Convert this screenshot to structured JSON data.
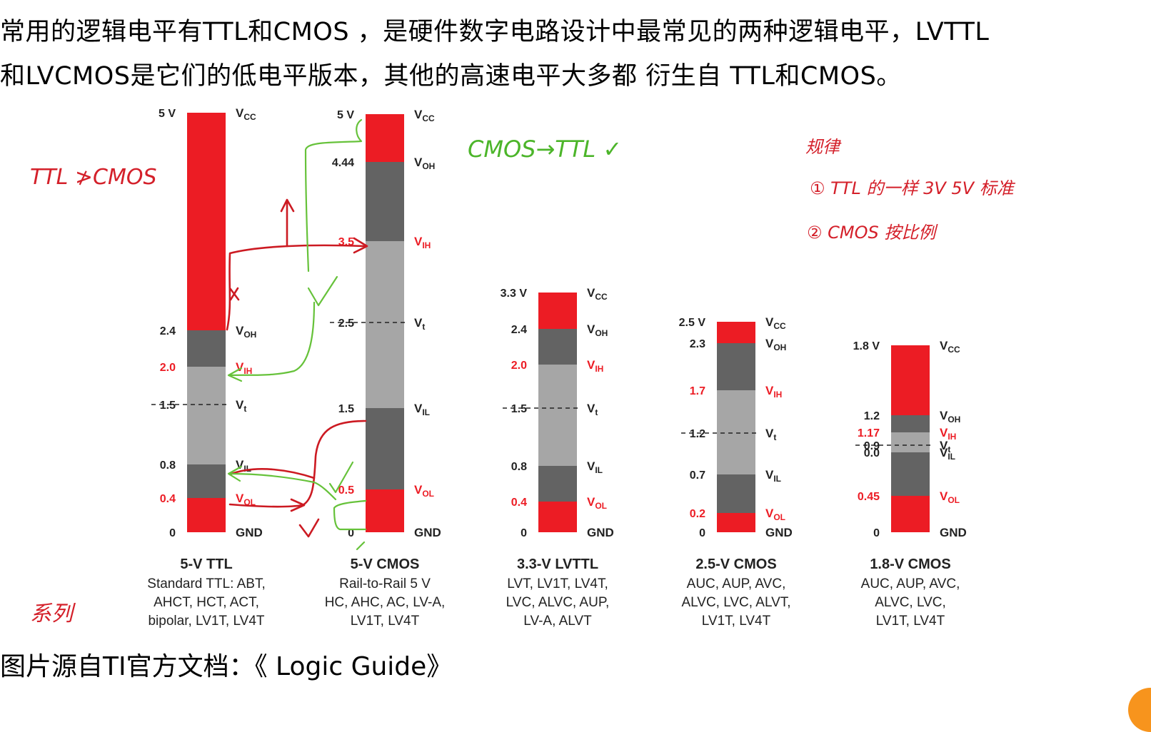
{
  "intro": {
    "line1": "常用的逻辑电平有TTL和CMOS ，是硬件数字电路设计中最常见的两种逻辑电平，LVTTL",
    "line2": "和LVCMOS是它们的低电平版本，其他的高速电平大多都 衍生自 TTL和CMOS。"
  },
  "footer": {
    "text": "图片源自TI官方文档：《 Logic Guide》"
  },
  "colors": {
    "red": "#ec1c24",
    "dark_gray": "#636363",
    "light_gray": "#a6a6a6",
    "annotation_red": "#cc1a22",
    "annotation_green": "#66c23a"
  },
  "families": [
    {
      "name": "5-V TTL",
      "desc": [
        "Standard TTL: ABT,",
        "AHCT, HCT, ACT,",
        "bipolar, LV1T, LV4T"
      ],
      "levels": [
        {
          "sym": "V",
          "sub": "CC",
          "value": "5 V",
          "red": false
        },
        {
          "sym": "V",
          "sub": "OH",
          "value": "2.4",
          "red": false
        },
        {
          "sym": "V",
          "sub": "IH",
          "value": "2.0",
          "red": true
        },
        {
          "sym": "V",
          "sub": "t",
          "value": "1.5",
          "red": false
        },
        {
          "sym": "V",
          "sub": "IL",
          "value": "0.8",
          "red": false
        },
        {
          "sym": "V",
          "sub": "OL",
          "value": "0.4",
          "red": true
        },
        {
          "sym": "GND",
          "sub": "",
          "value": "0",
          "red": false
        }
      ]
    },
    {
      "name": "5-V CMOS",
      "desc": [
        "Rail-to-Rail 5 V",
        "HC, AHC, AC, LV-A,",
        "LV1T, LV4T"
      ],
      "levels": [
        {
          "sym": "V",
          "sub": "CC",
          "value": "5 V",
          "red": false
        },
        {
          "sym": "V",
          "sub": "OH",
          "value": "4.44",
          "red": false
        },
        {
          "sym": "V",
          "sub": "IH",
          "value": "3.5",
          "red": true
        },
        {
          "sym": "V",
          "sub": "t",
          "value": "2.5",
          "red": false
        },
        {
          "sym": "V",
          "sub": "IL",
          "value": "1.5",
          "red": false
        },
        {
          "sym": "V",
          "sub": "OL",
          "value": "0.5",
          "red": true
        },
        {
          "sym": "GND",
          "sub": "",
          "value": "0",
          "red": false
        }
      ]
    },
    {
      "name": "3.3-V LVTTL",
      "desc": [
        "LVT, LV1T, LV4T,",
        "LVC, ALVC, AUP,",
        "LV-A, ALVT"
      ],
      "levels": [
        {
          "sym": "V",
          "sub": "CC",
          "value": "3.3 V",
          "red": false
        },
        {
          "sym": "V",
          "sub": "OH",
          "value": "2.4",
          "red": false
        },
        {
          "sym": "V",
          "sub": "IH",
          "value": "2.0",
          "red": true
        },
        {
          "sym": "V",
          "sub": "t",
          "value": "1.5",
          "red": false
        },
        {
          "sym": "V",
          "sub": "IL",
          "value": "0.8",
          "red": false
        },
        {
          "sym": "V",
          "sub": "OL",
          "value": "0.4",
          "red": true
        },
        {
          "sym": "GND",
          "sub": "",
          "value": "0",
          "red": false
        }
      ]
    },
    {
      "name": "2.5-V CMOS",
      "desc": [
        "AUC, AUP, AVC,",
        "ALVC, LVC, ALVT,",
        "LV1T, LV4T"
      ],
      "levels": [
        {
          "sym": "V",
          "sub": "CC",
          "value": "2.5 V",
          "red": false
        },
        {
          "sym": "V",
          "sub": "OH",
          "value": "2.3",
          "red": false
        },
        {
          "sym": "V",
          "sub": "IH",
          "value": "1.7",
          "red": true
        },
        {
          "sym": "V",
          "sub": "t",
          "value": "1.2",
          "red": false
        },
        {
          "sym": "V",
          "sub": "IL",
          "value": "0.7",
          "red": false
        },
        {
          "sym": "V",
          "sub": "OL",
          "value": "0.2",
          "red": true
        },
        {
          "sym": "GND",
          "sub": "",
          "value": "0",
          "red": false
        }
      ]
    },
    {
      "name": "1.8-V CMOS",
      "desc": [
        "AUC, AUP, AVC,",
        "ALVC, LVC,",
        "LV1T, LV4T"
      ],
      "levels": [
        {
          "sym": "V",
          "sub": "CC",
          "value": "1.8 V",
          "red": false
        },
        {
          "sym": "V",
          "sub": "OH",
          "value": "1.2",
          "red": false
        },
        {
          "sym": "V",
          "sub": "IH",
          "value": "1.17",
          "red": true
        },
        {
          "sym": "V",
          "sub": "t",
          "value": "0.9",
          "red": false
        },
        {
          "sym": "V",
          "sub": "IL",
          "value": "0.0",
          "red": false
        },
        {
          "sym": "V",
          "sub": "OL",
          "value": "0.45",
          "red": true
        },
        {
          "sym": "GND",
          "sub": "",
          "value": "0",
          "red": false
        }
      ]
    }
  ],
  "annotations": {
    "ttl_to_cmos": "TTL ≯CMOS",
    "cmos_to_ttl": "CMOS→TTL ✓",
    "rule_title": "规律",
    "rule_1": "① TTL 的一样  3V 5V 标准",
    "rule_2": "② CMOS 按比例",
    "series": "系列"
  }
}
